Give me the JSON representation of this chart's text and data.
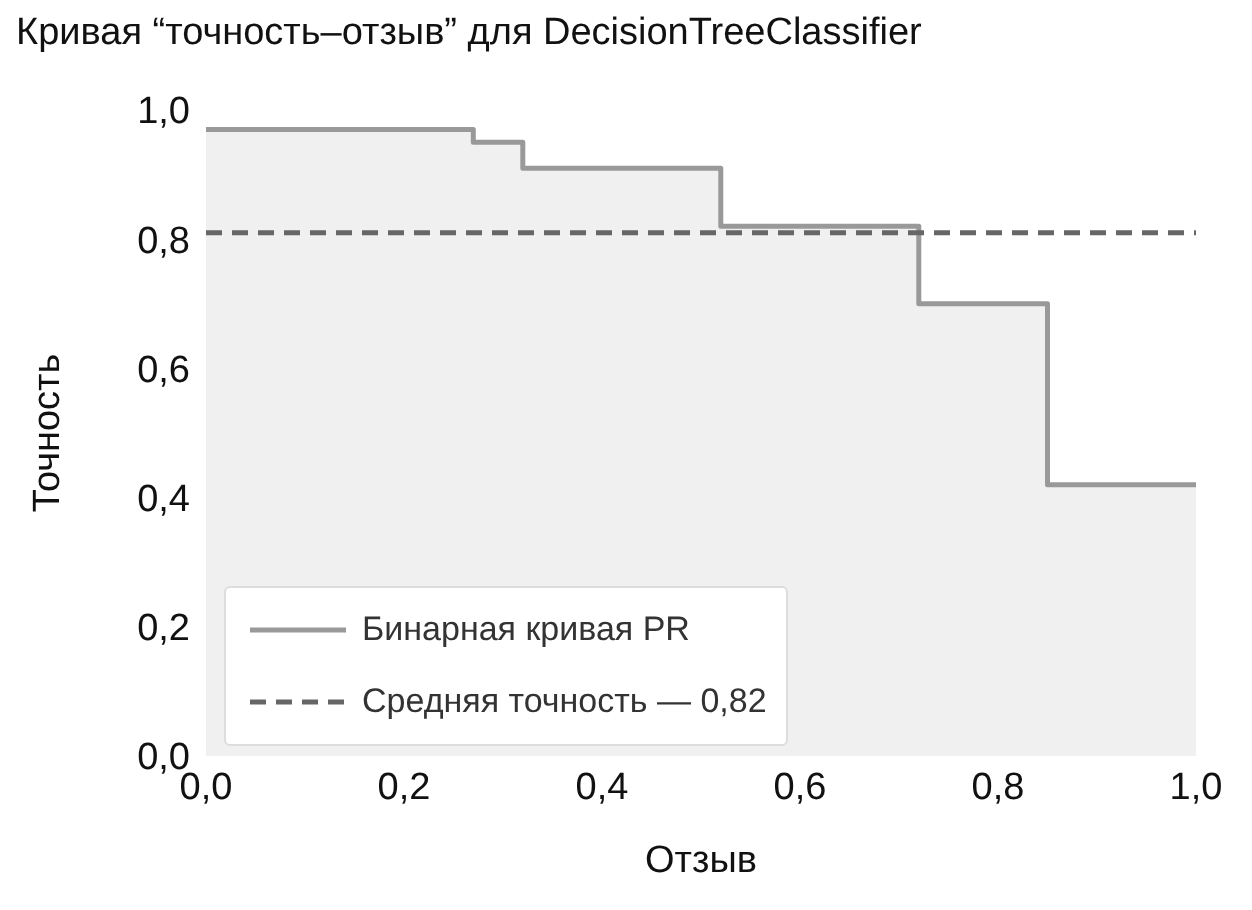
{
  "chart_data": {
    "type": "step",
    "title": "Кривая “точность–отзыв” для DecisionTreeClassifier",
    "xlabel": "Отзыв",
    "ylabel": "Точность",
    "series": [
      {
        "name": "Бинарная кривая PR",
        "color": "#999999",
        "x": [
          0,
          0.27,
          0.32,
          0.52,
          0.72,
          0.85,
          1.0
        ],
        "values": [
          0.97,
          0.95,
          0.91,
          0.82,
          0.7,
          0.42,
          0.42
        ]
      },
      {
        "name": "Средняя точность — 0,82",
        "type": "line",
        "line_style": "dashed",
        "color": "#666666",
        "x": [
          0,
          1.0
        ],
        "values": [
          0.81,
          0.81
        ]
      }
    ],
    "xlim": [
      0,
      1.0
    ],
    "ylim": [
      0,
      1.0
    ],
    "xticks": [
      {
        "value": 0,
        "label": "0,0"
      },
      {
        "value": 0.2,
        "label": "0,2"
      },
      {
        "value": 0.4,
        "label": "0,4"
      },
      {
        "value": 0.6,
        "label": "0,6"
      },
      {
        "value": 0.8,
        "label": "0,8"
      },
      {
        "value": 1.0,
        "label": "1,0"
      }
    ],
    "yticks": [
      {
        "value": 0,
        "label": "0,0"
      },
      {
        "value": 0.2,
        "label": "0,2"
      },
      {
        "value": 0.4,
        "label": "0,4"
      },
      {
        "value": 0.6,
        "label": "0,6"
      },
      {
        "value": 0.8,
        "label": "0,8"
      },
      {
        "value": 1.0,
        "label": "1,0"
      }
    ],
    "grid": false,
    "legend": "bottom left"
  }
}
